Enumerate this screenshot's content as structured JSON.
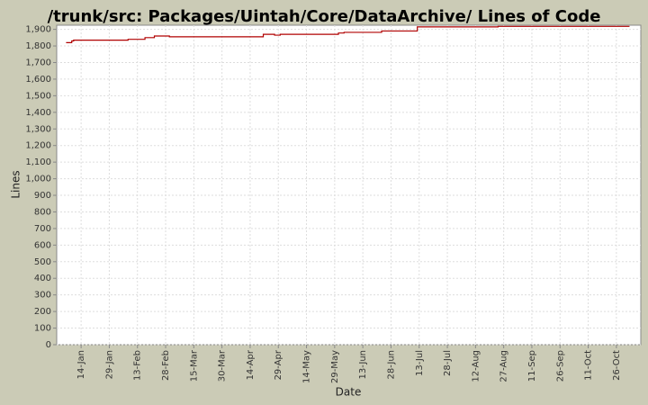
{
  "chart_data": {
    "type": "line",
    "step": true,
    "title": "/trunk/src: Packages/Uintah/Core/DataArchive/ Lines of Code",
    "x_label": "Date",
    "y_label": "Lines",
    "x": [
      "6-Jan",
      "9-Jan",
      "10-Jan",
      "8-Feb",
      "17-Feb",
      "22-Feb",
      "2-Mar",
      "21-Apr",
      "27-Apr",
      "30-Apr",
      "31-May",
      "3-Jun",
      "23-Jun",
      "12-Jul",
      "24-Aug",
      "2-Nov"
    ],
    "series": [
      {
        "name": "Lines",
        "color": "#b00000",
        "values": [
          1820,
          1830,
          1835,
          1840,
          1850,
          1860,
          1855,
          1870,
          1865,
          1870,
          1878,
          1882,
          1890,
          1915,
          1918,
          1918
        ]
      }
    ],
    "xlim": [
      "1-Jan",
      "8-Nov"
    ],
    "xticks": [
      "14-Jan",
      "29-Jan",
      "13-Feb",
      "28-Feb",
      "15-Mar",
      "30-Mar",
      "14-Apr",
      "29-Apr",
      "14-May",
      "29-May",
      "13-Jun",
      "28-Jun",
      "13-Jul",
      "28-Jul",
      "12-Aug",
      "27-Aug",
      "11-Sep",
      "26-Sep",
      "11-Oct",
      "26-Oct"
    ],
    "ylim": [
      0,
      1925
    ],
    "yticks": [
      0,
      100,
      200,
      300,
      400,
      500,
      600,
      700,
      800,
      900,
      {
        "value": 1000,
        "label": "1,000"
      },
      {
        "value": 1100,
        "label": "1,100"
      },
      {
        "value": 1200,
        "label": "1,200"
      },
      {
        "value": 1300,
        "label": "1,300"
      },
      {
        "value": 1400,
        "label": "1,400"
      },
      {
        "value": 1500,
        "label": "1,500"
      },
      {
        "value": 1600,
        "label": "1,600"
      },
      {
        "value": 1700,
        "label": "1,700"
      },
      {
        "value": 1800,
        "label": "1,800"
      },
      {
        "value": 1900,
        "label": "1,900"
      }
    ],
    "grid": true
  }
}
